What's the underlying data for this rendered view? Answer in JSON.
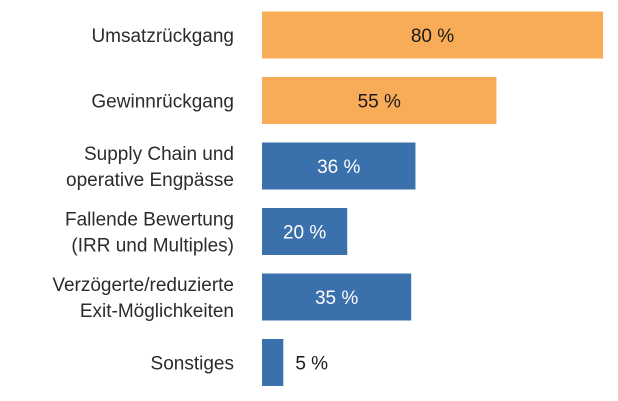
{
  "chart_data": {
    "type": "bar",
    "orientation": "horizontal",
    "categories": [
      [
        "Umsatzrückgang"
      ],
      [
        "Gewinnrückgang"
      ],
      [
        "Supply Chain und",
        "operative Engpässe"
      ],
      [
        "Fallende Bewertung",
        "(IRR und Multiples)"
      ],
      [
        "Verzögerte/reduzierte",
        "Exit-Möglichkeiten"
      ],
      [
        "Sonstiges"
      ]
    ],
    "values": [
      80,
      55,
      36,
      20,
      35,
      5
    ],
    "value_labels": [
      "80 %",
      "55 %",
      "36 %",
      "20 %",
      "35 %",
      "5 %"
    ],
    "colors": [
      "#F9AC57",
      "#F9AC57",
      "#3A70AC",
      "#3A70AC",
      "#3A70AC",
      "#3A70AC"
    ],
    "label_colors": [
      "#1a1a1a",
      "#1a1a1a",
      "#ffffff",
      "#ffffff",
      "#ffffff",
      "#1a1a1a"
    ],
    "xlim": [
      0,
      80
    ],
    "grid": false,
    "legend": "none"
  }
}
